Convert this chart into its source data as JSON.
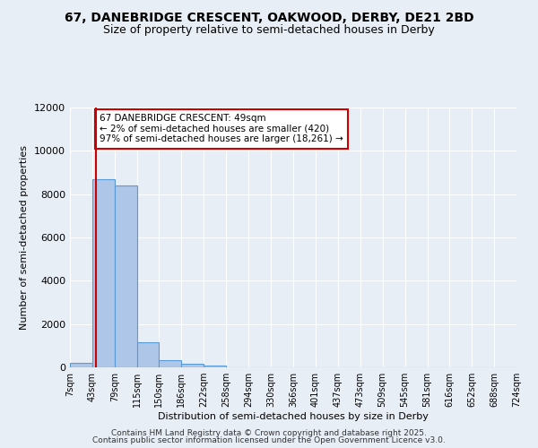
{
  "title": "67, DANEBRIDGE CRESCENT, OAKWOOD, DERBY, DE21 2BD",
  "subtitle": "Size of property relative to semi-detached houses in Derby",
  "xlabel": "Distribution of semi-detached houses by size in Derby",
  "ylabel": "Number of semi-detached properties",
  "bin_edges": [
    7,
    43,
    79,
    115,
    150,
    186,
    222,
    258,
    294,
    330,
    366,
    401,
    437,
    473,
    509,
    545,
    581,
    616,
    652,
    688,
    724
  ],
  "bin_values": [
    200,
    8700,
    8400,
    1150,
    340,
    150,
    90,
    0,
    0,
    0,
    0,
    0,
    0,
    0,
    0,
    0,
    0,
    0,
    0,
    0
  ],
  "bar_color": "#aec6e8",
  "bar_edge_color": "#5b9bd5",
  "property_size": 49,
  "property_label": "67 DANEBRIDGE CRESCENT: 49sqm",
  "pct_smaller": "2%",
  "count_smaller": "420",
  "pct_larger": "97%",
  "count_larger": "18,261",
  "vline_color": "#cc0000",
  "annotation_box_color": "#cc0000",
  "ylim": [
    0,
    12000
  ],
  "background_color": "#e8eef5",
  "footer_line1": "Contains HM Land Registry data © Crown copyright and database right 2025.",
  "footer_line2": "Contains public sector information licensed under the Open Government Licence v3.0.",
  "tick_labels": [
    "7sqm",
    "43sqm",
    "79sqm",
    "115sqm",
    "150sqm",
    "186sqm",
    "222sqm",
    "258sqm",
    "294sqm",
    "330sqm",
    "366sqm",
    "401sqm",
    "437sqm",
    "473sqm",
    "509sqm",
    "545sqm",
    "581sqm",
    "616sqm",
    "652sqm",
    "688sqm",
    "724sqm"
  ]
}
